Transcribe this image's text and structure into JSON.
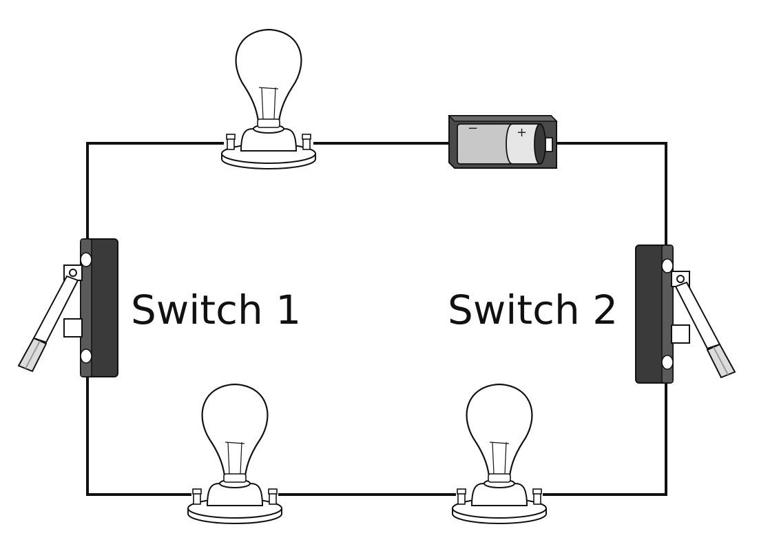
{
  "switch_1": {
    "label": "Switch 1"
  },
  "switch_2": {
    "label": "Switch 2"
  },
  "battery": {
    "minus_sign": "−",
    "plus_sign": "+"
  },
  "colors": {
    "wire": "#111111",
    "switch_body": "#3a3a3a",
    "lever": "#dcdcdc",
    "battery_case": "#4a4a4a",
    "battery_cell": "#c8c8c8"
  }
}
